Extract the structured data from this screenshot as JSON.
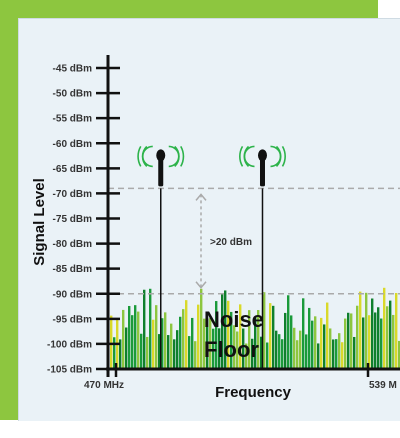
{
  "chart_data": {
    "type": "bar",
    "title": "",
    "xlabel": "Frequency",
    "ylabel": "Signal Level",
    "y_unit": "dBm",
    "ylim": [
      -105,
      -45
    ],
    "y_ticks": [
      -45,
      -50,
      -55,
      -60,
      -65,
      -70,
      -75,
      -80,
      -85,
      -90,
      -95,
      -100,
      -105
    ],
    "y_tick_labels": [
      "-45 dBm",
      "-50 dBm",
      "-55 dBm",
      "-60 dBm",
      "-65 dBm",
      "-70 dBm",
      "-75 dBm",
      "-80 dBm",
      "-85 dBm",
      "-90 dBm",
      "-95 dBm",
      "-100 dBm",
      "-105 dBm"
    ],
    "x_unit": "MHz",
    "xlim": [
      470,
      539
    ],
    "x_tick_labels": [
      "470 MHz",
      "539 M"
    ],
    "signals": [
      {
        "name": "microphone-1",
        "frequency": 484,
        "level": -69
      },
      {
        "name": "microphone-2",
        "frequency": 511,
        "level": -69
      }
    ],
    "reference_levels": [
      -69,
      -90
    ],
    "annotation": ">20 dBm",
    "noise_floor_label": [
      "Noise",
      "Floor"
    ],
    "noise_floor_range": [
      -100,
      -90
    ],
    "colors": {
      "background_accent": "#8dc63f",
      "panel": "#eaf2f7",
      "axis": "#111111",
      "dashed_lines": "#aaaaaa",
      "noise": [
        "#1a9a3a",
        "#8dc63f",
        "#d9d92a",
        "#0f7f2c"
      ],
      "mic_waves": "#2db34a"
    },
    "icons": [
      "microphone-icon",
      "microphone-icon"
    ]
  }
}
